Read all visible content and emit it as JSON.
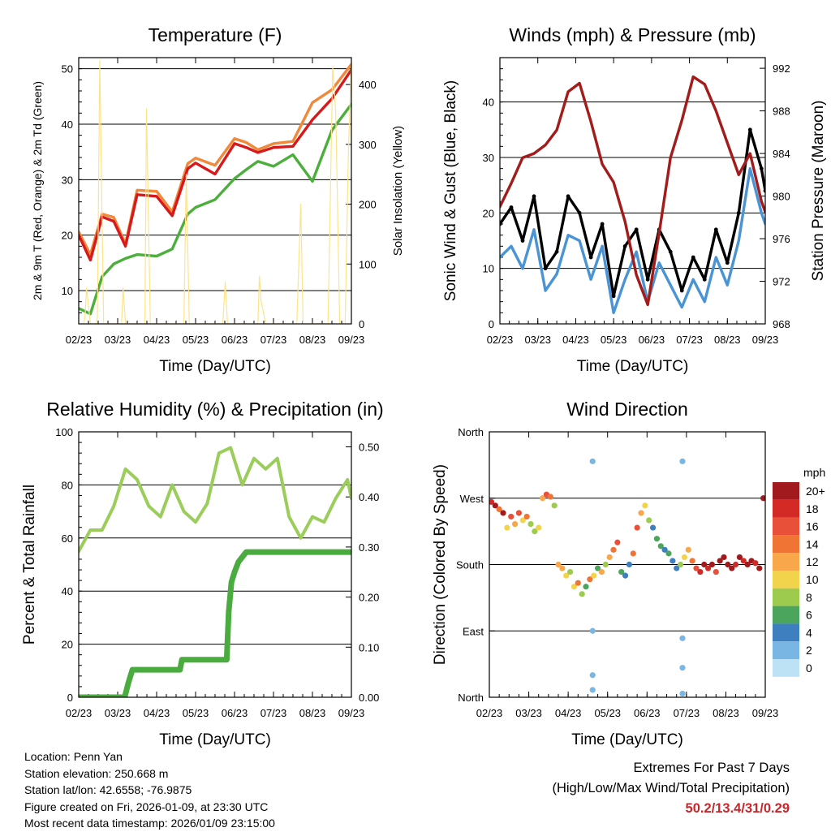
{
  "chart_data": [
    {
      "id": "temperature",
      "type": "line",
      "title": "Temperature (F)",
      "xlabel": "Time (Day/UTC)",
      "ylabel": "2m & 9m T (Red, Orange) & 2m Td (Green)",
      "ylabel_right": "Solar Insolation (Yellow)",
      "x_ticks": [
        "02/23",
        "03/23",
        "04/23",
        "05/23",
        "06/23",
        "07/23",
        "08/23",
        "09/23"
      ],
      "ylim": [
        4,
        52
      ],
      "y_ticks": [
        10,
        20,
        30,
        40,
        50
      ],
      "ylim_right": [
        0,
        445
      ],
      "y_ticks_right": [
        0,
        100,
        200,
        300,
        400
      ],
      "series": [
        {
          "name": "9m T",
          "color": "#f0893a",
          "x": [
            0.0,
            0.3,
            0.6,
            0.9,
            1.2,
            1.5,
            2.0,
            2.4,
            2.8,
            3.0,
            3.5,
            4.0,
            4.3,
            4.6,
            5.0,
            5.5,
            6.0,
            6.5,
            7.0
          ],
          "values": [
            20.6,
            16.5,
            23.8,
            23.2,
            18.4,
            28.1,
            27.9,
            24.2,
            32.9,
            33.9,
            32.6,
            37.4,
            36.7,
            35.4,
            36.5,
            36.9,
            43.9,
            46.2,
            50.8
          ]
        },
        {
          "name": "2m T",
          "color": "#d7191c",
          "x": [
            0.0,
            0.3,
            0.6,
            0.9,
            1.2,
            1.5,
            2.0,
            2.4,
            2.8,
            3.0,
            3.5,
            4.0,
            4.3,
            4.6,
            5.0,
            5.5,
            6.0,
            6.5,
            7.0
          ],
          "values": [
            20.0,
            15.5,
            23.3,
            22.5,
            18.0,
            27.3,
            27.0,
            23.5,
            32.0,
            33.0,
            31.0,
            36.5,
            35.8,
            34.9,
            35.8,
            36.0,
            40.8,
            44.6,
            49.8
          ]
        },
        {
          "name": "2m Td",
          "color": "#4caf3c",
          "x": [
            0.0,
            0.3,
            0.6,
            0.9,
            1.2,
            1.5,
            2.0,
            2.4,
            2.8,
            3.0,
            3.5,
            4.0,
            4.3,
            4.6,
            5.0,
            5.5,
            6.0,
            6.5,
            7.0
          ],
          "values": [
            6.8,
            5.8,
            12.5,
            14.8,
            15.8,
            16.5,
            16.2,
            17.5,
            23.8,
            25.0,
            26.4,
            30.2,
            31.8,
            33.3,
            32.4,
            34.5,
            29.7,
            38.9,
            43.6
          ]
        },
        {
          "name": "Solar Insolation",
          "color": "#fde48a",
          "axis": "right",
          "x": [
            0.0,
            0.12,
            0.16,
            0.2,
            0.3,
            0.44,
            0.48,
            0.54,
            0.64,
            0.9,
            1.1,
            1.14,
            1.2,
            1.3,
            1.4,
            1.7,
            1.74,
            1.84,
            1.96,
            2.7,
            2.76,
            2.84,
            2.94,
            3.7,
            3.76,
            3.82,
            3.92,
            4.6,
            4.64,
            4.68,
            4.8,
            5.6,
            5.7,
            5.76,
            5.84,
            6.4,
            6.52,
            6.6,
            6.7,
            6.84,
            6.92,
            7.0
          ],
          "values": [
            0,
            0,
            10,
            60,
            0,
            0,
            10,
            440,
            0,
            0,
            0,
            60,
            0,
            0,
            0,
            0,
            360,
            0,
            0,
            0,
            250,
            0,
            0,
            0,
            70,
            0,
            0,
            0,
            80,
            40,
            0,
            0,
            200,
            0,
            0,
            0,
            430,
            350,
            0,
            0,
            280,
            440
          ]
        }
      ]
    },
    {
      "id": "winds",
      "type": "line",
      "title": "Winds (mph) & Pressure (mb)",
      "xlabel": "Time (Day/UTC)",
      "ylabel": "Sonic Wind & Gust (Blue, Black)",
      "ylabel_right": "Station Pressure (Maroon)",
      "x_ticks": [
        "02/23",
        "03/23",
        "04/23",
        "05/23",
        "06/23",
        "07/23",
        "08/23",
        "09/23"
      ],
      "ylim": [
        0,
        48
      ],
      "y_ticks": [
        0,
        10,
        20,
        30,
        40
      ],
      "ylim_right": [
        968,
        993
      ],
      "y_ticks_right": [
        968,
        972,
        976,
        980,
        984,
        988,
        992
      ],
      "series": [
        {
          "name": "Sonic Wind",
          "color": "#4a94d4",
          "x": [
            0.0,
            0.3,
            0.6,
            0.9,
            1.2,
            1.5,
            1.8,
            2.1,
            2.4,
            2.7,
            3.0,
            3.3,
            3.6,
            3.9,
            4.2,
            4.5,
            4.8,
            5.1,
            5.4,
            5.7,
            6.0,
            6.3,
            6.6,
            6.9,
            7.0
          ],
          "values": [
            12,
            14,
            10,
            17,
            6,
            9,
            16,
            15,
            8,
            14,
            2,
            8,
            13,
            4,
            11,
            7,
            3,
            8,
            4,
            12,
            7,
            15,
            28,
            20,
            18
          ]
        },
        {
          "name": "Gust",
          "color": "#000000",
          "x": [
            0.0,
            0.3,
            0.6,
            0.9,
            1.2,
            1.5,
            1.8,
            2.1,
            2.4,
            2.7,
            3.0,
            3.3,
            3.6,
            3.9,
            4.2,
            4.5,
            4.8,
            5.1,
            5.4,
            5.7,
            6.0,
            6.3,
            6.6,
            6.9,
            7.0
          ],
          "values": [
            18,
            21,
            15,
            23,
            10,
            13,
            23,
            20,
            12,
            18,
            5,
            14,
            17,
            8,
            17,
            13,
            6,
            12,
            8,
            17,
            11,
            20,
            35,
            28,
            24
          ]
        },
        {
          "name": "Station Pressure",
          "color": "#a31c1c",
          "axis": "right",
          "x": [
            0.0,
            0.3,
            0.6,
            0.9,
            1.2,
            1.5,
            1.8,
            2.1,
            2.4,
            2.7,
            3.0,
            3.3,
            3.6,
            3.9,
            4.2,
            4.5,
            4.8,
            5.1,
            5.4,
            5.7,
            6.0,
            6.3,
            6.6,
            6.9,
            7.0
          ],
          "values": [
            979.0,
            981.2,
            983.6,
            984.0,
            984.8,
            986.2,
            989.8,
            990.6,
            987.0,
            983.0,
            981.3,
            977.6,
            972.6,
            969.8,
            976.5,
            983.6,
            987.1,
            991.2,
            990.5,
            988.0,
            985.0,
            982.0,
            984.0,
            979.5,
            978.5
          ]
        }
      ]
    },
    {
      "id": "humidity",
      "type": "line",
      "title": "Relative Humidity (%) & Precipitation (in)",
      "xlabel": "Time (Day/UTC)",
      "ylabel": "Percent & Total Rainfall",
      "x_ticks": [
        "02/23",
        "03/23",
        "04/23",
        "05/23",
        "06/23",
        "07/23",
        "08/23",
        "09/23"
      ],
      "ylim": [
        0,
        100
      ],
      "y_ticks": [
        0,
        20,
        40,
        60,
        80,
        100
      ],
      "ylim_right": [
        0.0,
        0.53
      ],
      "y_ticks_right": [
        "0.00",
        "0.10",
        "0.20",
        "0.30",
        "0.40",
        "0.50"
      ],
      "series": [
        {
          "name": "Relative Humidity",
          "color": "#9acd5a",
          "x": [
            0.0,
            0.3,
            0.6,
            0.9,
            1.2,
            1.5,
            1.8,
            2.1,
            2.4,
            2.7,
            3.0,
            3.3,
            3.6,
            3.9,
            4.2,
            4.5,
            4.8,
            5.1,
            5.4,
            5.7,
            6.0,
            6.3,
            6.6,
            6.9,
            7.0
          ],
          "values": [
            55,
            63,
            63,
            72,
            86,
            82,
            72,
            68,
            80,
            70,
            66,
            73,
            92,
            94,
            80,
            90,
            86,
            90,
            68,
            60,
            68,
            66,
            75,
            82,
            75
          ]
        },
        {
          "name": "Total Precipitation",
          "color": "#4aab3e",
          "axis": "right",
          "x": [
            0.0,
            1.18,
            1.28,
            1.38,
            2.6,
            2.65,
            2.7,
            3.8,
            3.85,
            3.92,
            4.0,
            4.1,
            4.2,
            4.3,
            7.0
          ],
          "values": [
            0.0,
            0.0,
            0.03,
            0.055,
            0.055,
            0.075,
            0.075,
            0.075,
            0.17,
            0.23,
            0.25,
            0.27,
            0.28,
            0.29,
            0.29
          ]
        }
      ]
    },
    {
      "id": "direction",
      "type": "scatter",
      "title": "Wind Direction",
      "xlabel": "Time (Day/UTC)",
      "ylabel": "Direction (Colored By Speed)",
      "x_ticks": [
        "02/23",
        "03/23",
        "04/23",
        "05/23",
        "06/23",
        "07/23",
        "08/23",
        "09/23"
      ],
      "y_ticks": [
        "North",
        "East",
        "South",
        "West",
        "North"
      ],
      "legend_title": "mph",
      "legend_labels": [
        "20+",
        "18",
        "16",
        "14",
        "12",
        "10",
        "8",
        "6",
        "4",
        "2",
        "0"
      ],
      "legend_colors": [
        "#a11a1e",
        "#d42a25",
        "#e8503a",
        "#f07434",
        "#f8a84a",
        "#f2d44c",
        "#9ccb4e",
        "#4ca55c",
        "#3e80bf",
        "#7ab6e4",
        "#bde2f6"
      ],
      "series": [
        {
          "name": "Direction",
          "x": [
            0.05,
            0.15,
            0.25,
            0.35,
            0.45,
            0.55,
            0.65,
            0.75,
            0.85,
            0.95,
            1.05,
            1.15,
            1.25,
            1.35,
            1.45,
            1.55,
            1.65,
            1.75,
            1.85,
            1.95,
            2.05,
            2.15,
            2.25,
            2.35,
            2.45,
            2.55,
            2.65,
            2.75,
            2.85,
            2.95,
            3.05,
            3.15,
            3.25,
            3.35,
            3.45,
            3.55,
            3.65,
            3.75,
            3.85,
            3.95,
            4.05,
            4.15,
            4.25,
            4.35,
            4.45,
            4.55,
            4.65,
            4.75,
            4.85,
            4.95,
            5.05,
            5.15,
            5.25,
            5.35,
            5.45,
            5.55,
            5.65,
            5.75,
            5.85,
            5.95,
            6.05,
            6.15,
            6.25,
            6.35,
            6.45,
            6.55,
            6.65,
            6.75,
            6.85,
            6.95,
            2.62,
            2.62,
            2.62,
            2.62,
            4.9,
            4.9,
            4.9,
            4.9
          ],
          "values": [
            265,
            260,
            255,
            250,
            230,
            245,
            235,
            250,
            240,
            245,
            235,
            225,
            230,
            270,
            275,
            272,
            260,
            180,
            175,
            165,
            170,
            150,
            155,
            140,
            150,
            160,
            165,
            175,
            170,
            180,
            190,
            200,
            210,
            170,
            165,
            180,
            195,
            230,
            250,
            260,
            240,
            230,
            215,
            205,
            200,
            195,
            185,
            175,
            180,
            190,
            200,
            185,
            175,
            170,
            180,
            175,
            180,
            170,
            185,
            190,
            180,
            175,
            180,
            190,
            185,
            180,
            185,
            182,
            175,
            270,
            320,
            90,
            30,
            10,
            320,
            80,
            40,
            5
          ],
          "speeds": [
            18,
            20,
            14,
            19,
            10,
            16,
            12,
            15,
            9,
            14,
            8,
            7,
            10,
            12,
            16,
            14,
            8,
            11,
            12,
            10,
            8,
            9,
            13,
            8,
            6,
            14,
            9,
            6,
            12,
            8,
            12,
            14,
            16,
            6,
            4,
            3,
            14,
            16,
            12,
            10,
            8,
            4,
            5,
            6,
            4,
            5,
            3,
            4,
            8,
            10,
            12,
            14,
            16,
            18,
            20,
            18,
            20,
            16,
            20,
            20,
            20,
            22,
            18,
            20,
            18,
            20,
            20,
            18,
            20,
            20,
            2,
            1,
            1,
            1,
            2,
            2,
            1,
            1
          ]
        }
      ]
    }
  ],
  "station_info": {
    "location": "Location: Penn Yan",
    "elevation": "Station elevation: 250.668 m",
    "latlon": "Station lat/lon: 42.6558; -76.9875",
    "created": "Figure created on Fri, 2026-01-09, at 23:30 UTC",
    "recent": "Most recent data timestamp: 2026/01/09 23:15:00"
  },
  "extremes": {
    "title": "Extremes For Past 7 Days",
    "subtitle": "(High/Low/Max Wind/Total Precipitation)",
    "values": "50.2/13.4/31/0.29"
  }
}
